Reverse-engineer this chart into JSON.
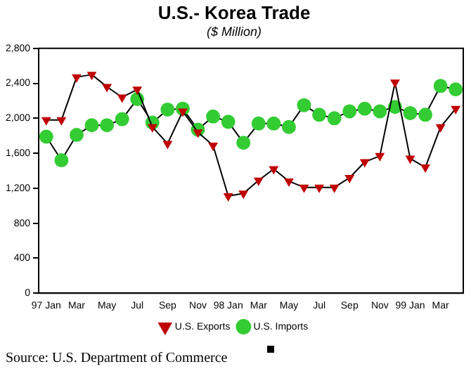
{
  "chart_data": {
    "type": "line",
    "title": "U.S.- Korea Trade",
    "subtitle": "($ Million)",
    "categories": [
      "97 Jan",
      null,
      "Mar",
      null,
      "May",
      null,
      "Jul",
      null,
      "Sep",
      null,
      "Nov",
      null,
      "98 Jan",
      null,
      "Mar",
      null,
      "May",
      null,
      "Jul",
      null,
      "Sep",
      null,
      "Nov",
      null,
      "99 Jan",
      null,
      "Mar",
      null
    ],
    "series": [
      {
        "name": "U.S. Exports",
        "color": "#c00000",
        "marker": "triangle",
        "values": [
          1980,
          1980,
          2470,
          2500,
          2360,
          2240,
          2330,
          1900,
          1710,
          2080,
          1840,
          1690,
          1110,
          1140,
          1290,
          1420,
          1280,
          1210,
          1210,
          1210,
          1320,
          1500,
          1570,
          2410,
          1540,
          1440,
          1900,
          2110
        ]
      },
      {
        "name": "U.S. Imports",
        "color": "#33cc33",
        "marker": "circle",
        "values": [
          1790,
          1520,
          1810,
          1920,
          1920,
          1990,
          2220,
          1950,
          2100,
          2110,
          1870,
          2020,
          1960,
          1720,
          1940,
          1940,
          1900,
          2150,
          2040,
          2000,
          2080,
          2110,
          2080,
          2130,
          2060,
          2040,
          2370,
          2330
        ]
      }
    ],
    "ylim": [
      0,
      2800
    ],
    "yticks": [
      0,
      {
        "value": 400,
        "label": "400"
      },
      {
        "value": 800,
        "label": "800"
      },
      {
        "value": 1200,
        "label": "1,200"
      },
      {
        "value": 1600,
        "label": "1,600"
      },
      {
        "value": 2000,
        "label": "2,000"
      },
      {
        "value": 2400,
        "label": "2,400"
      },
      {
        "value": 2800,
        "label": "2,800"
      }
    ],
    "grid": false,
    "legend": "bottom",
    "line_style": "solid",
    "annotations": [
      "Source: U.S. Department of Commerce"
    ]
  }
}
